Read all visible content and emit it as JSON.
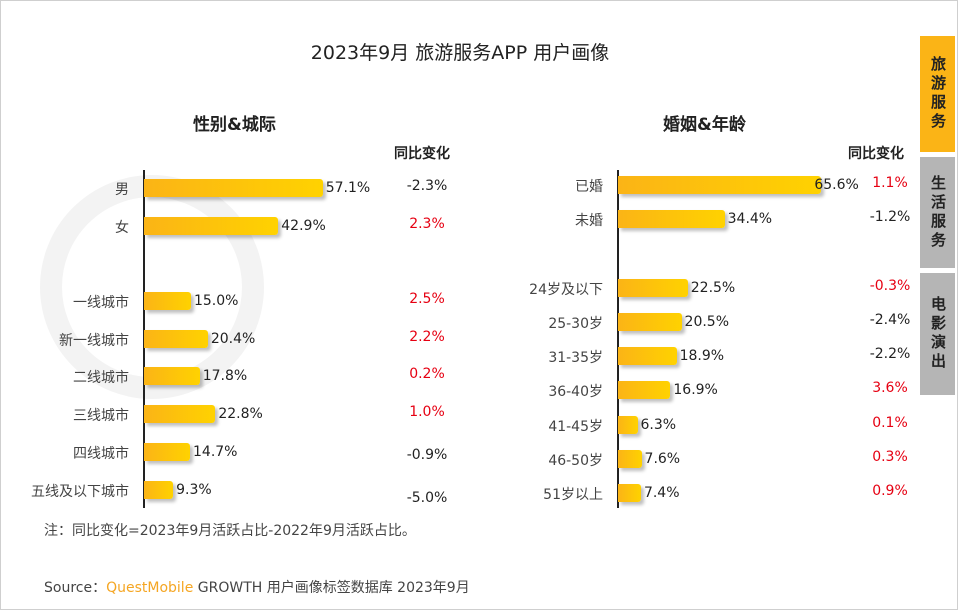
{
  "title": "2023年9月 旅游服务APP 用户画像",
  "tabs": [
    {
      "label": "旅游服务",
      "active": true
    },
    {
      "label": "生活服务",
      "active": false
    },
    {
      "label": "电影演出",
      "active": false
    }
  ],
  "watermark": "QUESTMOBILE",
  "colors": {
    "bar": "#fbb416",
    "bar_end": "#ffd200",
    "positive_change": "#e60012",
    "negative_change": "#222222",
    "active_tab": "#fbb416",
    "inactive_tab": "#b5b5b5"
  },
  "chart_data": [
    {
      "type": "bar",
      "orientation": "horizontal",
      "title": "性别&城际",
      "change_header": "同比变化",
      "categories": [
        "男",
        "女",
        "一线城市",
        "新一线城市",
        "二线城市",
        "三线城市",
        "四线城市",
        "五线及以下城市"
      ],
      "values": [
        57.1,
        42.9,
        15.0,
        20.4,
        17.8,
        22.8,
        14.7,
        9.3
      ],
      "value_labels": [
        "57.1%",
        "42.9%",
        "15.0%",
        "20.4%",
        "17.8%",
        "22.8%",
        "14.7%",
        "9.3%"
      ],
      "changes": [
        "-2.3%",
        "2.3%",
        "2.5%",
        "2.2%",
        "0.2%",
        "1.0%",
        "-0.9%",
        "-5.0%"
      ]
    },
    {
      "type": "bar",
      "orientation": "horizontal",
      "title": "婚姻&年龄",
      "change_header": "同比变化",
      "categories": [
        "已婚",
        "未婚",
        "24岁及以下",
        "25-30岁",
        "31-35岁",
        "36-40岁",
        "41-45岁",
        "46-50岁",
        "51岁以上"
      ],
      "values": [
        65.6,
        34.4,
        22.5,
        20.5,
        18.9,
        16.9,
        6.3,
        7.6,
        7.4
      ],
      "value_labels": [
        "65.6%",
        "34.4%",
        "22.5%",
        "20.5%",
        "18.9%",
        "16.9%",
        "6.3%",
        "7.6%",
        "7.4%"
      ],
      "changes": [
        "1.1%",
        "-1.2%",
        "-0.3%",
        "-2.4%",
        "-2.2%",
        "3.6%",
        "0.1%",
        "0.3%",
        "0.9%"
      ]
    }
  ],
  "note": "注：同比变化=2023年9月活跃占比-2022年9月活跃占比。",
  "source": {
    "prefix": "Source：",
    "brand": "QuestMobile",
    "text": " GROWTH 用户画像标签数据库 2023年9月"
  }
}
